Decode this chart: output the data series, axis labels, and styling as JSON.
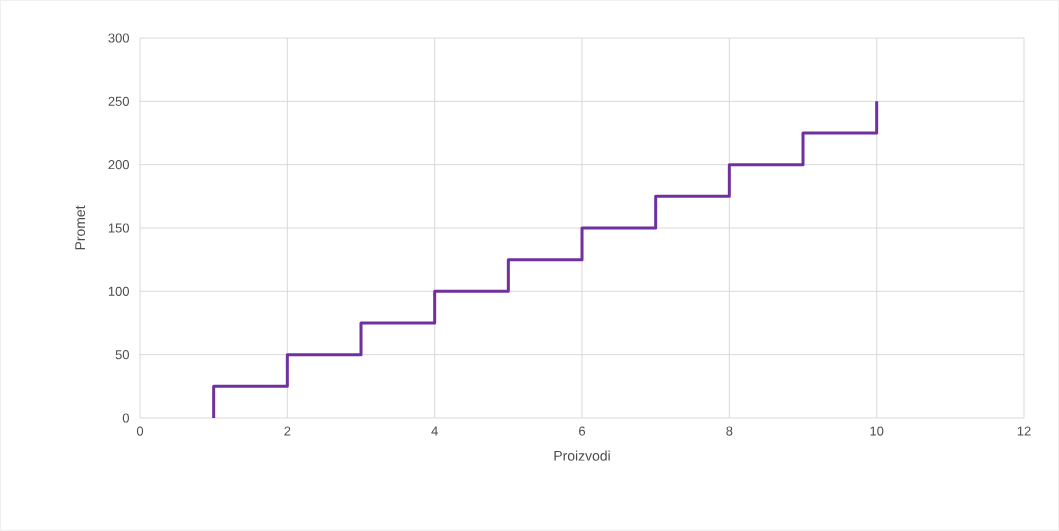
{
  "chart_data": {
    "type": "line",
    "xlabel": "Proizvodi",
    "ylabel": "Promet",
    "x": [
      1,
      1,
      2,
      2,
      3,
      3,
      4,
      4,
      5,
      5,
      6,
      6,
      7,
      7,
      8,
      8,
      9,
      9,
      10,
      10
    ],
    "series": [
      {
        "color": "#7030a0",
        "values": [
          0,
          25,
          25,
          50,
          50,
          75,
          75,
          100,
          100,
          125,
          125,
          150,
          150,
          175,
          175,
          200,
          200,
          225,
          225,
          250
        ]
      }
    ],
    "xlim": [
      0,
      12
    ],
    "xticks": [
      0,
      2,
      4,
      6,
      8,
      10,
      12
    ],
    "ylim": [
      0,
      300
    ],
    "yticks": [
      0,
      50,
      100,
      150,
      200,
      250,
      300
    ],
    "grid": true,
    "marker": "none",
    "line_style": "solid"
  }
}
